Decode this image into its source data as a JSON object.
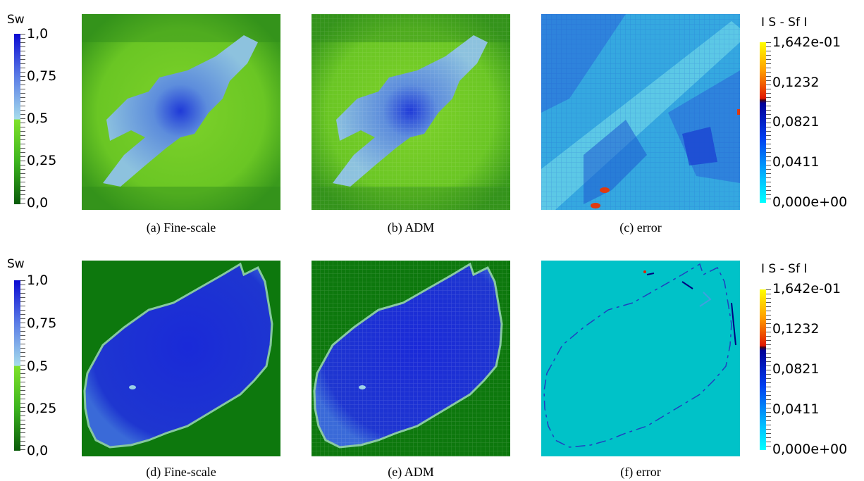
{
  "row1": {
    "sw_title": "Sw",
    "sw_ticks": [
      "1,0",
      "0,75",
      "0,5",
      "0,25",
      "0,0"
    ],
    "err_title": "I S - Sf I",
    "err_ticks": [
      "1,642e-01",
      "0,1232",
      "0,0821",
      "0,0411",
      "0,000e+00"
    ],
    "captions": [
      "(a) Fine-scale",
      "(b) ADM",
      "(c) error"
    ]
  },
  "row2": {
    "sw_title": "Sw",
    "sw_ticks": [
      "1,0",
      "0,75",
      "0,5",
      "0,25",
      "0,0"
    ],
    "err_title": "I S - Sf I",
    "err_ticks": [
      "1,642e-01",
      "0,1232",
      "0,0821",
      "0,0411",
      "0,000e+00"
    ],
    "captions": [
      "(d) Fine-scale",
      "(e) ADM",
      "(f) error"
    ]
  },
  "colors": {
    "sw_high": "#1212c8",
    "sw_mid_high": "#a6dcec",
    "sw_mid_low": "#7fe12a",
    "sw_low": "#0a6a0a",
    "err_high": "#ffff00",
    "err_mid": "#e02000",
    "err_low_dark": "#00008c",
    "err_low": "#00ffff",
    "background_cyan": "#00c8c8"
  }
}
